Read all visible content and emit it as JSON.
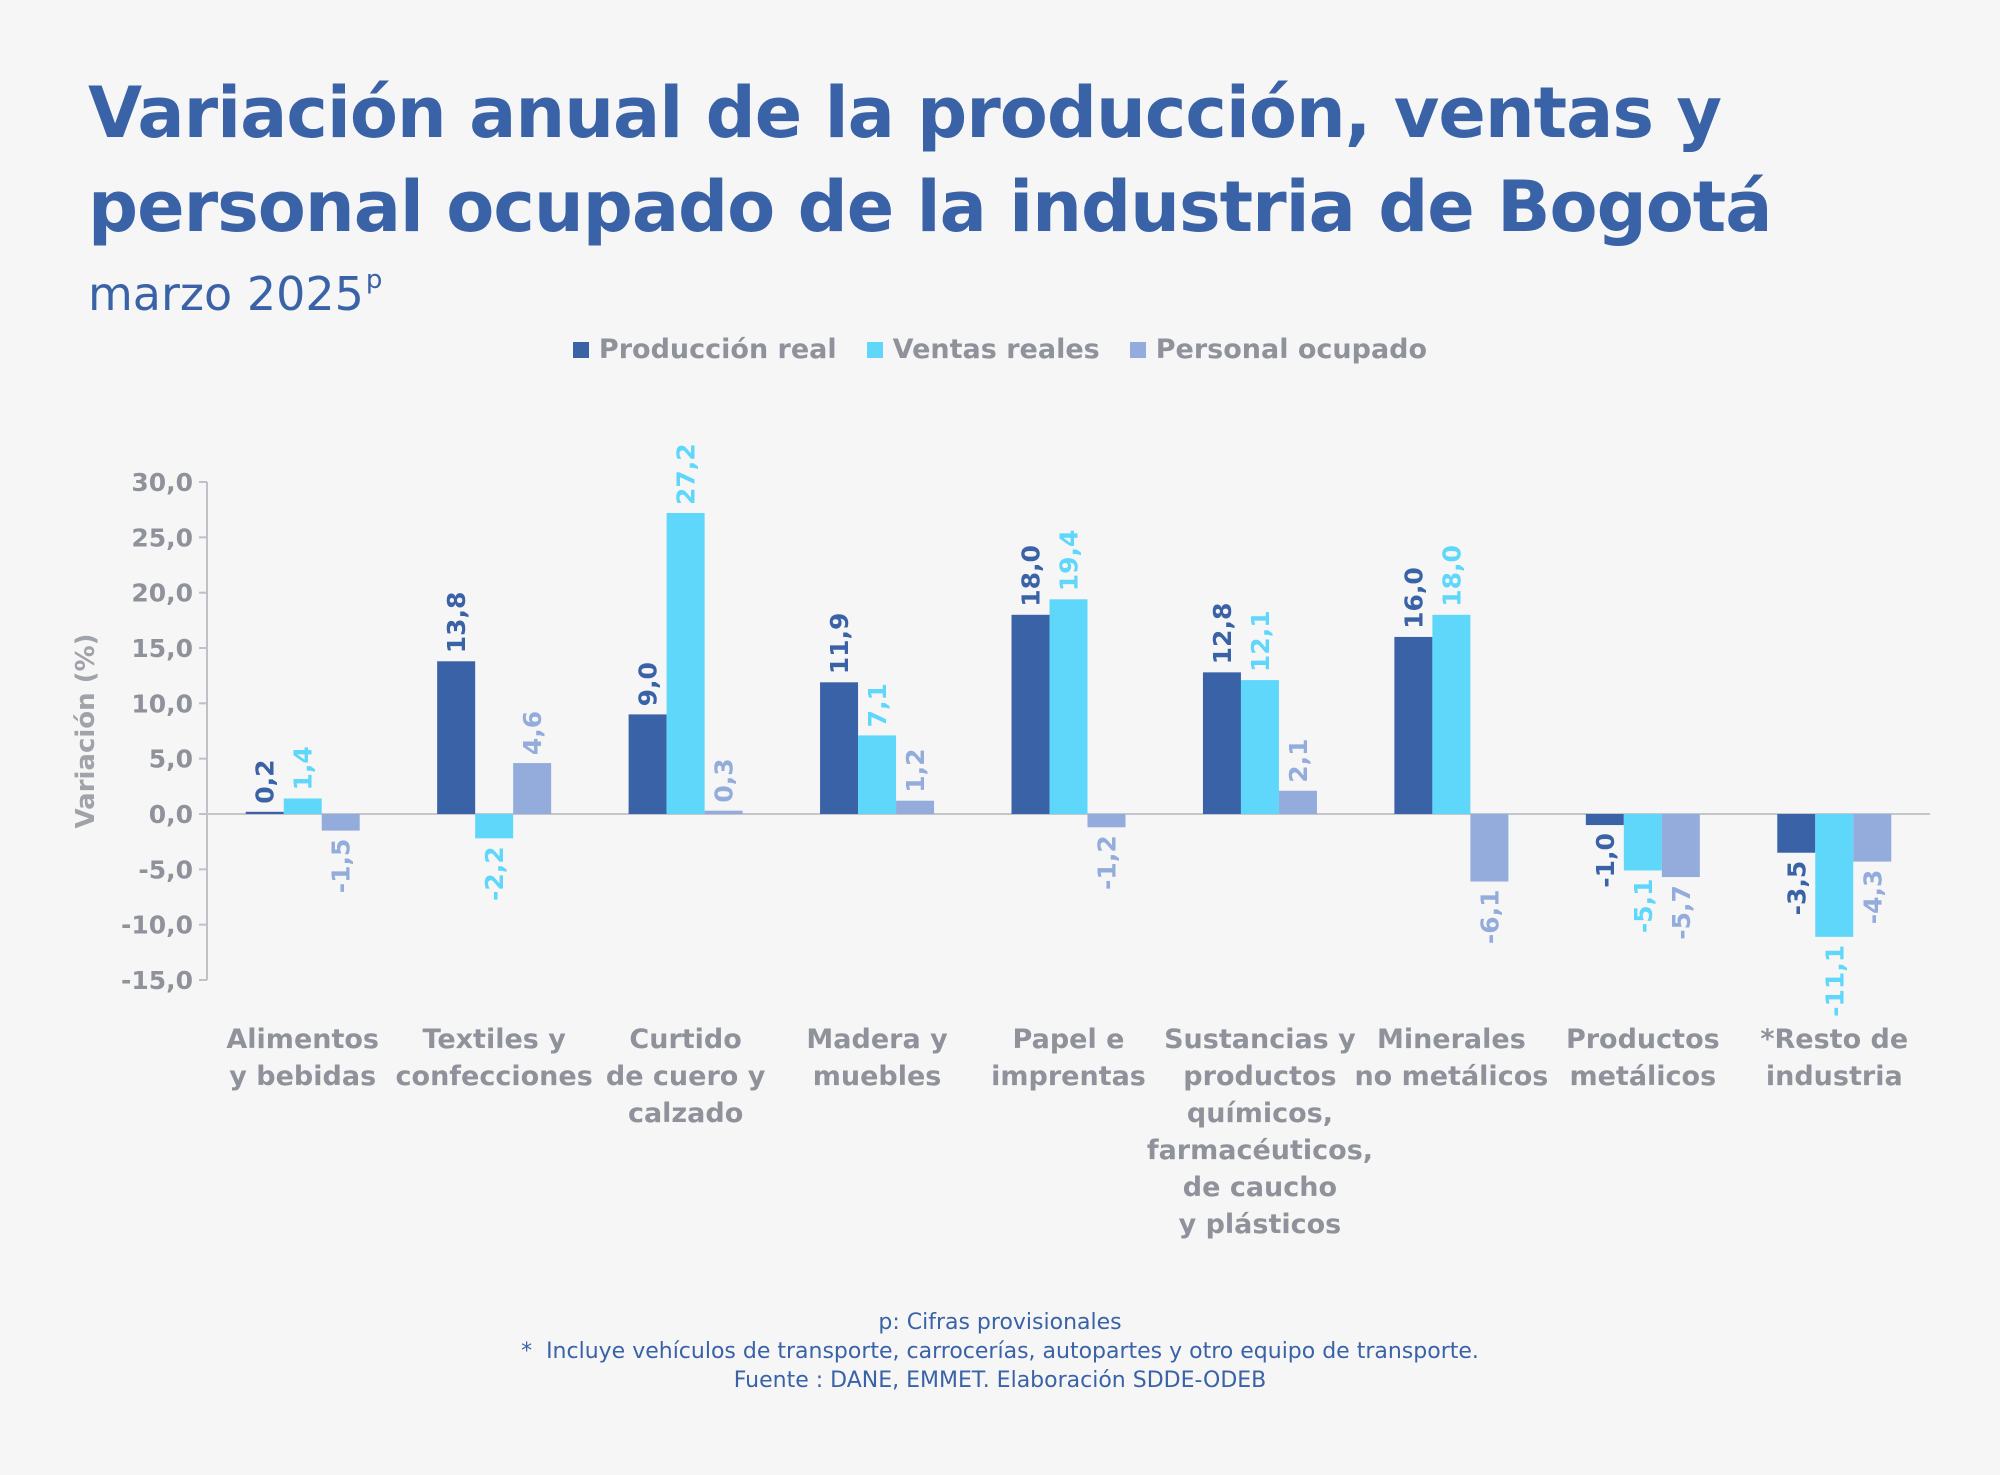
{
  "header": {
    "title": "Variación anual de la producción, ventas y personal ocupado de la industria de Bogotá",
    "subtitle": "marzo 2025",
    "subtitle_sup": "p"
  },
  "colors": {
    "produccion": "#3a62a7",
    "ventas": "#5ed7fb",
    "personal": "#93acdc",
    "axis_text": "#8f929b",
    "title": "#3a62a7"
  },
  "chart_data": {
    "type": "bar",
    "ylabel": "Variación (%)",
    "ylim": [
      -15,
      30
    ],
    "yticks": [
      "30,0",
      "25,0",
      "20,0",
      "15,0",
      "10,0",
      "5,0",
      "0,0",
      "-5,0",
      "-10,0",
      "-15,0"
    ],
    "ytick_values": [
      30,
      25,
      20,
      15,
      10,
      5,
      0,
      -5,
      -10,
      -15
    ],
    "legend_position": "top-center",
    "categories": [
      [
        "Alimentos",
        "y bebidas"
      ],
      [
        "Textiles y",
        "confecciones"
      ],
      [
        "Curtido",
        "de cuero y",
        "calzado"
      ],
      [
        "Madera y",
        "muebles"
      ],
      [
        "Papel e",
        "imprentas"
      ],
      [
        "Sustancias y",
        "productos",
        "químicos,",
        "farmacéuticos,",
        "de caucho",
        "y plásticos"
      ],
      [
        "Minerales",
        "no metálicos"
      ],
      [
        "Productos",
        "metálicos"
      ],
      [
        "*Resto de",
        "industria"
      ]
    ],
    "series": [
      {
        "name": "Producción real",
        "values": [
          0.2,
          13.8,
          9.0,
          11.9,
          18.0,
          12.8,
          16.0,
          -1.0,
          -3.5
        ],
        "labels": [
          "0,2",
          "13,8",
          "9,0",
          "11,9",
          "18,0",
          "12,8",
          "16,0",
          "-1,0",
          "-3,5"
        ]
      },
      {
        "name": "Ventas reales",
        "values": [
          1.4,
          -2.2,
          27.2,
          7.1,
          19.4,
          12.1,
          18.0,
          -5.1,
          -11.1
        ],
        "labels": [
          "1,4",
          "-2,2",
          "27,2",
          "7,1",
          "19,4",
          "12,1",
          "18,0",
          "-5,1",
          "-11,1"
        ]
      },
      {
        "name": "Personal ocupado",
        "values": [
          -1.5,
          4.6,
          0.3,
          1.2,
          -1.2,
          2.1,
          -6.1,
          -5.7,
          -4.3
        ],
        "labels": [
          "-1,5",
          "4,6",
          "0,3",
          "1,2",
          "-1,2",
          "2,1",
          "-6,1",
          "-5,7",
          "-4,3"
        ]
      }
    ]
  },
  "footnotes": {
    "line1": "p: Cifras provisionales",
    "line2": "*  Incluye vehículos de transporte, carrocerías, autopartes y otro equipo de transporte.",
    "line3": "Fuente : DANE, EMMET. Elaboración SDDE-ODEB"
  }
}
